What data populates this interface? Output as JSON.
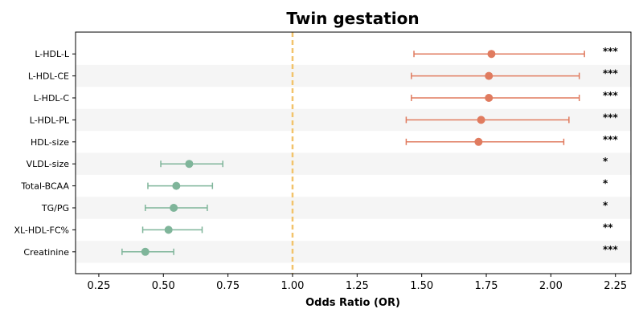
{
  "chart_data": {
    "type": "forest",
    "title": "Twin gestation",
    "xlabel": "Odds Ratio (OR)",
    "xlim": [
      0.16,
      2.31
    ],
    "xticks": [
      0.25,
      0.5,
      0.75,
      1.0,
      1.25,
      1.5,
      1.75,
      2.0,
      2.25
    ],
    "xtick_labels": [
      "0.25",
      "0.50",
      "0.75",
      "1.00",
      "1.25",
      "1.50",
      "1.75",
      "2.00",
      "2.25"
    ],
    "reference_line": 1.0,
    "colors": {
      "positive": "#e07b5f",
      "negative": "#7fb59a",
      "reference": "#f2c36b",
      "stripe": "#f5f5f5"
    },
    "rows": [
      {
        "label": "L-HDL-L",
        "or": 1.77,
        "lo": 1.47,
        "hi": 2.13,
        "sig": "***",
        "group": "positive"
      },
      {
        "label": "L-HDL-CE",
        "or": 1.76,
        "lo": 1.46,
        "hi": 2.11,
        "sig": "***",
        "group": "positive"
      },
      {
        "label": "L-HDL-C",
        "or": 1.76,
        "lo": 1.46,
        "hi": 2.11,
        "sig": "***",
        "group": "positive"
      },
      {
        "label": "L-HDL-PL",
        "or": 1.73,
        "lo": 1.44,
        "hi": 2.07,
        "sig": "***",
        "group": "positive"
      },
      {
        "label": "HDL-size",
        "or": 1.72,
        "lo": 1.44,
        "hi": 2.05,
        "sig": "***",
        "group": "positive"
      },
      {
        "label": "VLDL-size",
        "or": 0.6,
        "lo": 0.49,
        "hi": 0.73,
        "sig": "*",
        "group": "negative"
      },
      {
        "label": "Total-BCAA",
        "or": 0.55,
        "lo": 0.44,
        "hi": 0.69,
        "sig": "*",
        "group": "negative"
      },
      {
        "label": "TG/PG",
        "or": 0.54,
        "lo": 0.43,
        "hi": 0.67,
        "sig": "*",
        "group": "negative"
      },
      {
        "label": "XL-HDL-FC%",
        "or": 0.52,
        "lo": 0.42,
        "hi": 0.65,
        "sig": "**",
        "group": "negative"
      },
      {
        "label": "Creatinine",
        "or": 0.43,
        "lo": 0.34,
        "hi": 0.54,
        "sig": "***",
        "group": "negative"
      }
    ]
  }
}
